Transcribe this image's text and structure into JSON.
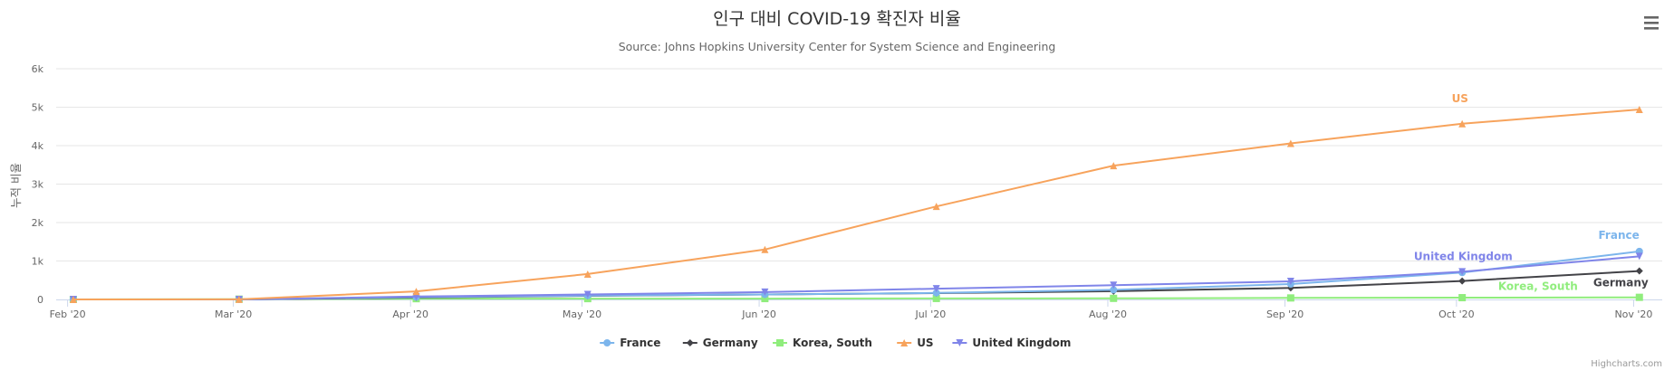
{
  "title": "인구 대비 COVID-19 확진자 비율",
  "subtitle": "Source: Johns Hopkins University Center for System Science and Engineering",
  "credits": "Highcharts.com",
  "menu_icon": "hamburger-menu-icon",
  "chart_data": {
    "type": "line",
    "ylabel": "누적 비율",
    "xlabel": "",
    "ylim": [
      0,
      6000
    ],
    "y_ticks": [
      0,
      1000,
      2000,
      3000,
      4000,
      5000,
      6000
    ],
    "y_tick_labels": [
      "0",
      "1k",
      "2k",
      "3k",
      "4k",
      "5k",
      "6k"
    ],
    "x_ticks": [
      "2020-02-01",
      "2020-03-01",
      "2020-04-01",
      "2020-05-01",
      "2020-06-01",
      "2020-07-01",
      "2020-08-01",
      "2020-09-01",
      "2020-10-01",
      "2020-11-01"
    ],
    "x_tick_labels": [
      "Feb '20",
      "Mar '20",
      "Apr '20",
      "May '20",
      "Jun '20",
      "Jul '20",
      "Aug '20",
      "Sep '20",
      "Oct '20",
      "Nov '20"
    ],
    "x_range": [
      "2020-01-30",
      "2020-11-06"
    ],
    "grid": true,
    "legend_position": "bottom-center",
    "x": [
      "2020-02-02",
      "2020-03-02",
      "2020-04-02",
      "2020-05-02",
      "2020-06-02",
      "2020-07-02",
      "2020-08-02",
      "2020-09-02",
      "2020-10-02",
      "2020-11-02"
    ],
    "series": [
      {
        "name": "France",
        "color": "#7cb5ec",
        "marker": "circle",
        "end_label": "France",
        "values": [
          0,
          1,
          60,
          100,
          130,
          170,
          250,
          400,
          700,
          1250
        ]
      },
      {
        "name": "Germany",
        "color": "#434348",
        "marker": "diamond",
        "end_label": "Germany",
        "values": [
          0,
          1,
          50,
          95,
          130,
          165,
          215,
          300,
          480,
          740
        ]
      },
      {
        "name": "Korea, South",
        "color": "#90ed7d",
        "marker": "square",
        "end_label": "Korea, South",
        "values": [
          0,
          8,
          19,
          21,
          22,
          25,
          28,
          39,
          46,
          55
        ]
      },
      {
        "name": "US",
        "color": "#f7a35c",
        "marker": "triangle",
        "end_label": "US",
        "values": [
          0,
          2,
          210,
          660,
          1300,
          2420,
          3480,
          4060,
          4570,
          4940
        ]
      },
      {
        "name": "United Kingdom",
        "color": "#8085e9",
        "marker": "triangle-down",
        "end_label": "United Kingdom",
        "values": [
          0,
          1,
          75,
          130,
          190,
          280,
          370,
          470,
          720,
          1120
        ]
      }
    ]
  }
}
